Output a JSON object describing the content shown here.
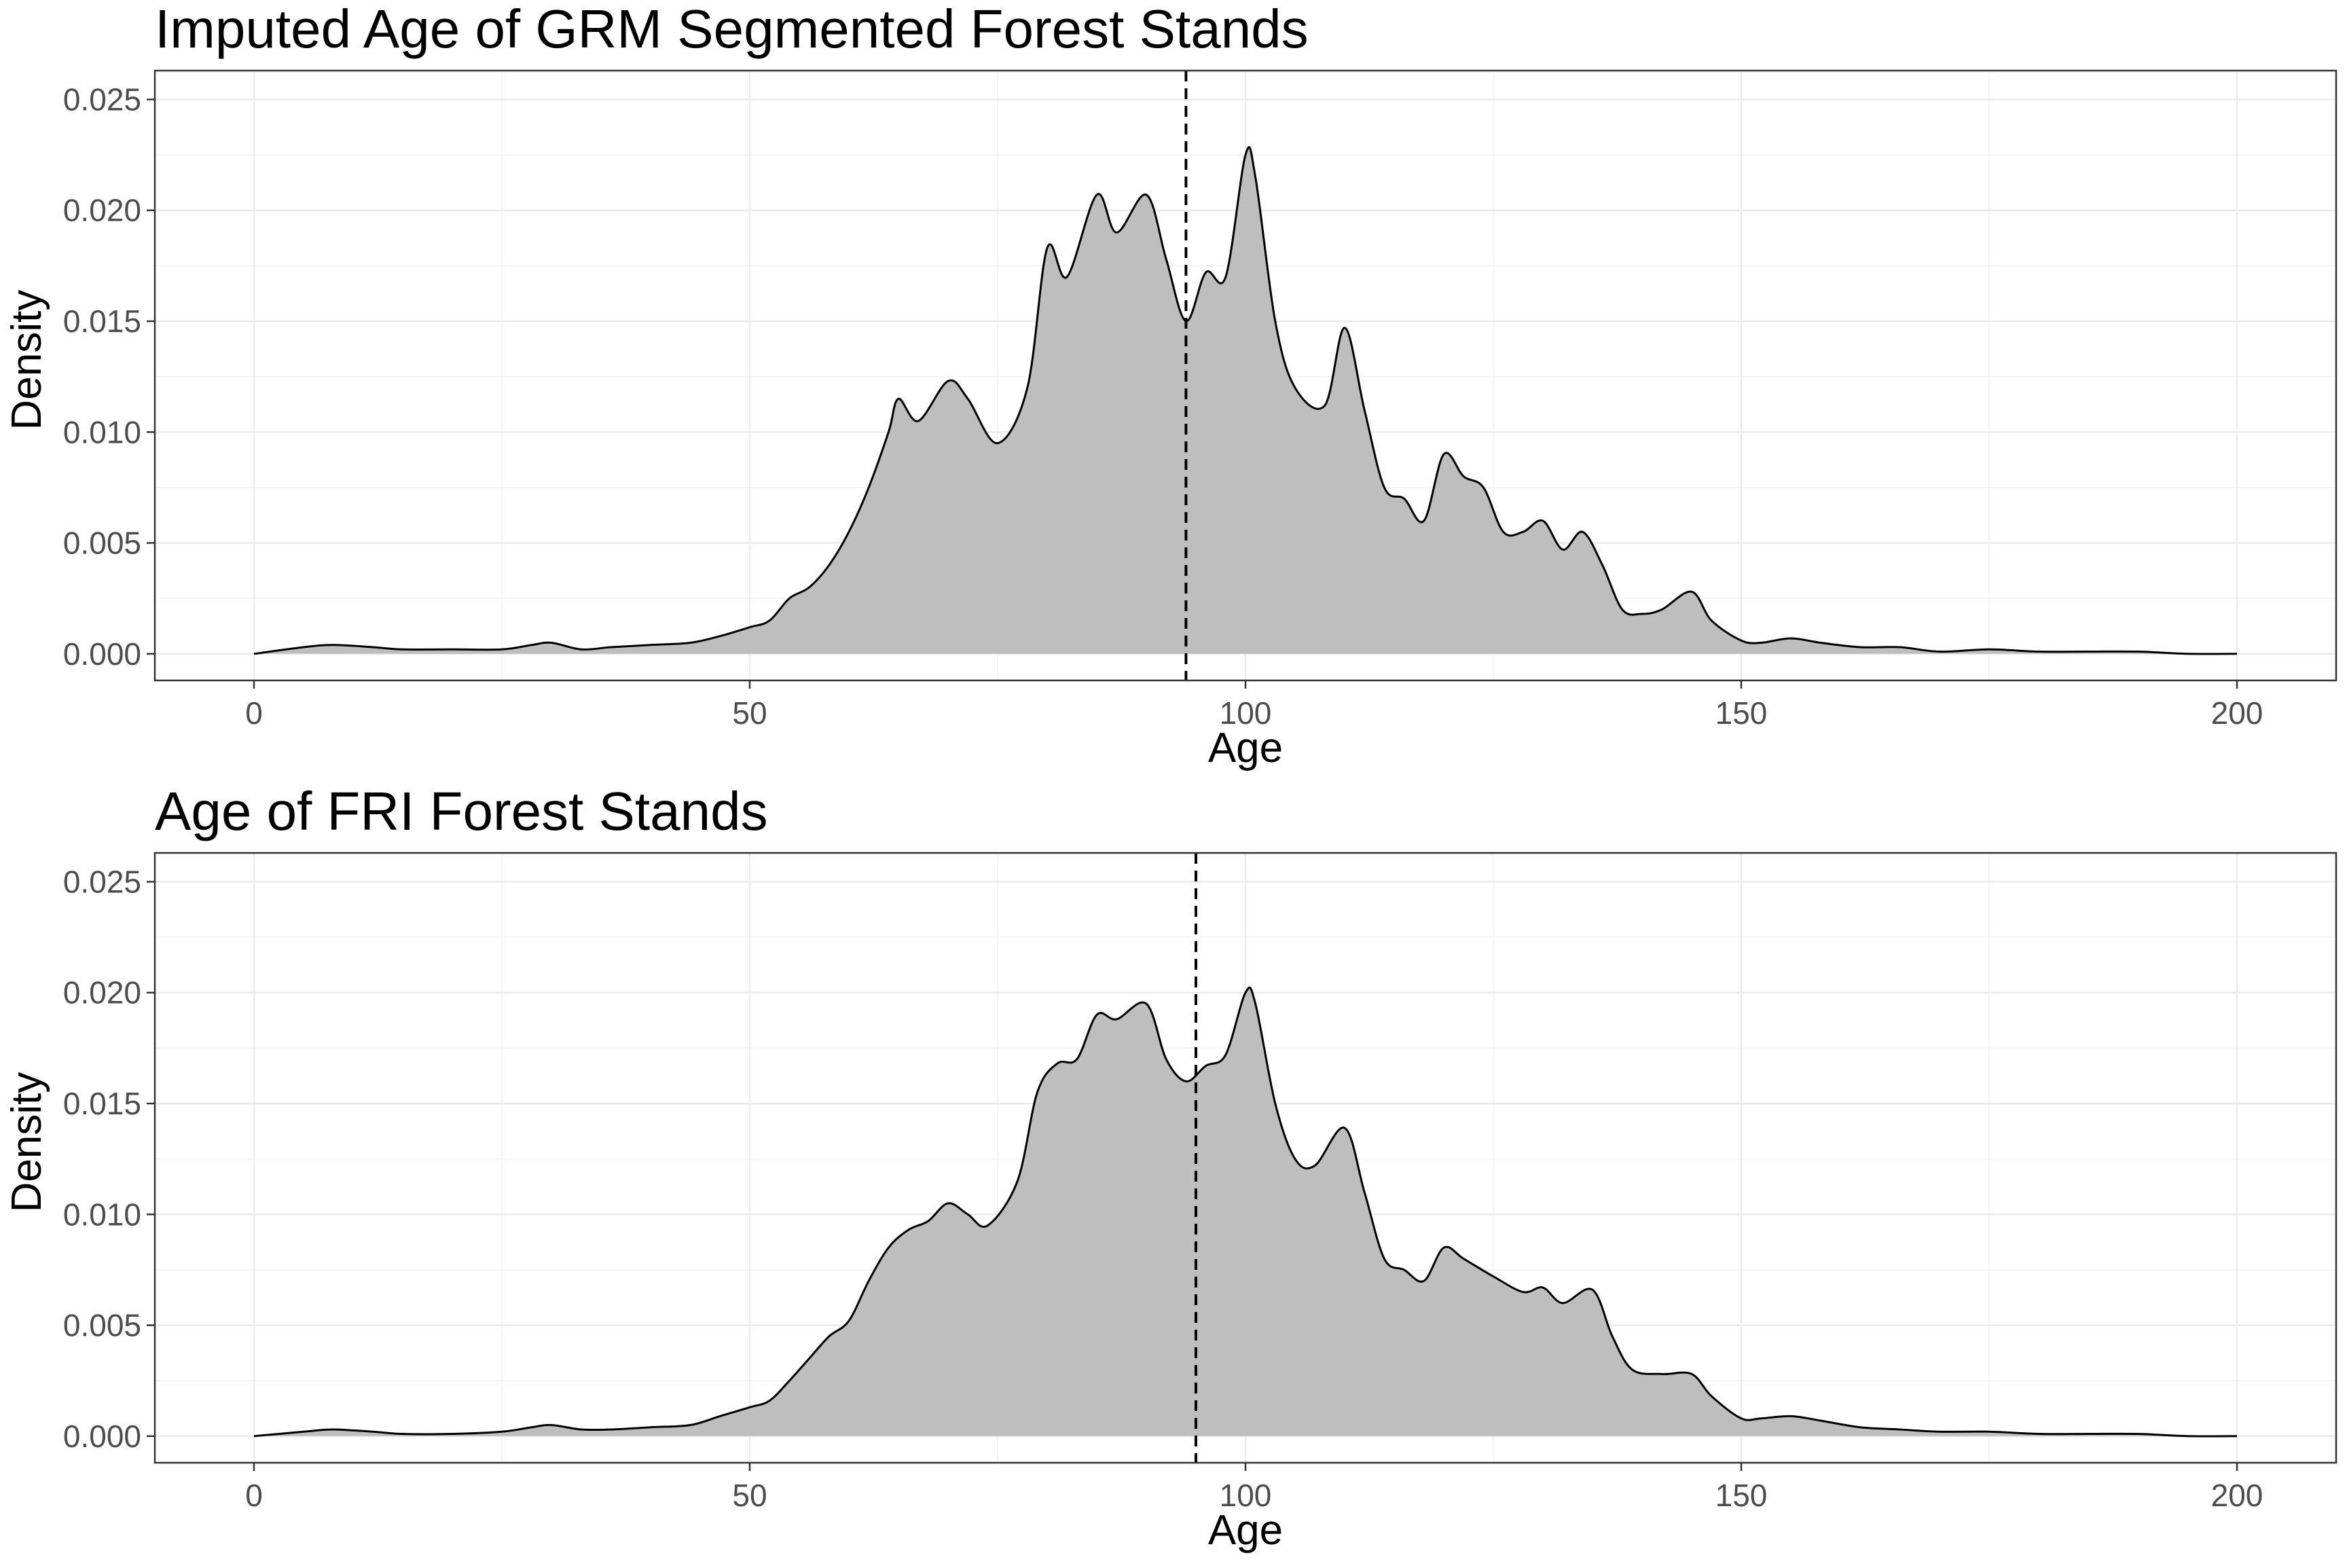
{
  "chart_data": [
    {
      "type": "area",
      "title": "Imputed Age of GRM Segmented Forest Stands",
      "xlabel": "Age",
      "ylabel": "Density",
      "xlim": [
        -10,
        210
      ],
      "ylim": [
        -0.0012,
        0.0263
      ],
      "x_ticks": [
        0,
        50,
        100,
        150,
        200
      ],
      "x_tick_labels": [
        "0",
        "50",
        "100",
        "150",
        "200"
      ],
      "y_ticks": [
        0,
        0.005,
        0.01,
        0.015,
        0.02,
        0.025
      ],
      "y_tick_labels": [
        "0.000",
        "0.005",
        "0.010",
        "0.015",
        "0.020",
        "0.025"
      ],
      "grid": true,
      "legend": "none",
      "fill_color": "#bebebe",
      "line_color": "#000000",
      "mean_line_x": 94,
      "x": [
        0,
        5,
        8,
        12,
        15,
        20,
        25,
        28,
        30,
        33,
        36,
        40,
        44,
        47,
        50,
        52,
        54,
        56,
        58,
        60,
        62,
        64,
        65,
        67,
        70,
        72,
        75,
        78,
        80,
        82,
        85,
        87,
        90,
        92,
        94,
        96,
        98,
        100,
        101,
        103,
        105,
        108,
        110,
        112,
        114,
        116,
        118,
        120,
        122,
        124,
        126,
        128,
        130,
        132,
        134,
        136,
        138,
        140,
        142,
        145,
        147,
        150,
        152,
        155,
        158,
        162,
        166,
        170,
        175,
        180,
        185,
        190,
        195,
        200
      ],
      "y": [
        0.0,
        0.0003,
        0.0004,
        0.0003,
        0.0002,
        0.0002,
        0.0002,
        0.0004,
        0.0005,
        0.0002,
        0.0003,
        0.0004,
        0.0005,
        0.0008,
        0.0012,
        0.0015,
        0.0025,
        0.003,
        0.004,
        0.0055,
        0.0075,
        0.01,
        0.0115,
        0.0105,
        0.0123,
        0.0115,
        0.0095,
        0.012,
        0.0183,
        0.017,
        0.0207,
        0.019,
        0.0207,
        0.0178,
        0.015,
        0.0172,
        0.017,
        0.0225,
        0.0215,
        0.015,
        0.012,
        0.0112,
        0.0147,
        0.011,
        0.0075,
        0.007,
        0.006,
        0.009,
        0.008,
        0.0075,
        0.0055,
        0.0055,
        0.006,
        0.0047,
        0.0055,
        0.004,
        0.002,
        0.0018,
        0.002,
        0.0028,
        0.0015,
        0.0006,
        0.0005,
        0.0007,
        0.0005,
        0.0003,
        0.0003,
        0.0001,
        0.0002,
        0.0001,
        0.0001,
        0.0001,
        0.0,
        0.0
      ]
    },
    {
      "type": "area",
      "title": "Age of FRI Forest Stands",
      "xlabel": "Age",
      "ylabel": "Density",
      "xlim": [
        -10,
        210
      ],
      "ylim": [
        -0.0012,
        0.0263
      ],
      "x_ticks": [
        0,
        50,
        100,
        150,
        200
      ],
      "x_tick_labels": [
        "0",
        "50",
        "100",
        "150",
        "200"
      ],
      "y_ticks": [
        0,
        0.005,
        0.01,
        0.015,
        0.02,
        0.025
      ],
      "y_tick_labels": [
        "0.000",
        "0.005",
        "0.010",
        "0.015",
        "0.020",
        "0.025"
      ],
      "grid": true,
      "legend": "none",
      "fill_color": "#bebebe",
      "line_color": "#000000",
      "mean_line_x": 95,
      "x": [
        0,
        5,
        8,
        12,
        15,
        20,
        25,
        28,
        30,
        33,
        36,
        40,
        44,
        47,
        50,
        52,
        54,
        56,
        58,
        60,
        62,
        64,
        66,
        68,
        70,
        72,
        74,
        77,
        79,
        81,
        83,
        85,
        87,
        90,
        92,
        94,
        96,
        98,
        100,
        101,
        103,
        105,
        107,
        110,
        112,
        114,
        116,
        118,
        120,
        122,
        125,
        128,
        130,
        132,
        135,
        137,
        139,
        142,
        145,
        147,
        150,
        152,
        155,
        158,
        162,
        166,
        170,
        175,
        180,
        185,
        190,
        195,
        200
      ],
      "y": [
        0.0,
        0.0002,
        0.0003,
        0.0002,
        0.0001,
        0.0001,
        0.0002,
        0.0004,
        0.0005,
        0.0003,
        0.0003,
        0.0004,
        0.0005,
        0.0009,
        0.0013,
        0.0016,
        0.0025,
        0.0035,
        0.0045,
        0.0052,
        0.007,
        0.0085,
        0.0093,
        0.0097,
        0.0105,
        0.01,
        0.0095,
        0.0115,
        0.0155,
        0.0168,
        0.017,
        0.019,
        0.0188,
        0.0195,
        0.017,
        0.016,
        0.0167,
        0.0172,
        0.02,
        0.0195,
        0.015,
        0.0125,
        0.0122,
        0.0139,
        0.011,
        0.008,
        0.0075,
        0.007,
        0.0085,
        0.008,
        0.0072,
        0.0065,
        0.0067,
        0.006,
        0.0066,
        0.0045,
        0.003,
        0.0028,
        0.0028,
        0.0018,
        0.0008,
        0.0008,
        0.0009,
        0.0007,
        0.0004,
        0.0003,
        0.0002,
        0.0002,
        0.0001,
        0.0001,
        0.0001,
        0.0,
        0.0
      ]
    }
  ]
}
